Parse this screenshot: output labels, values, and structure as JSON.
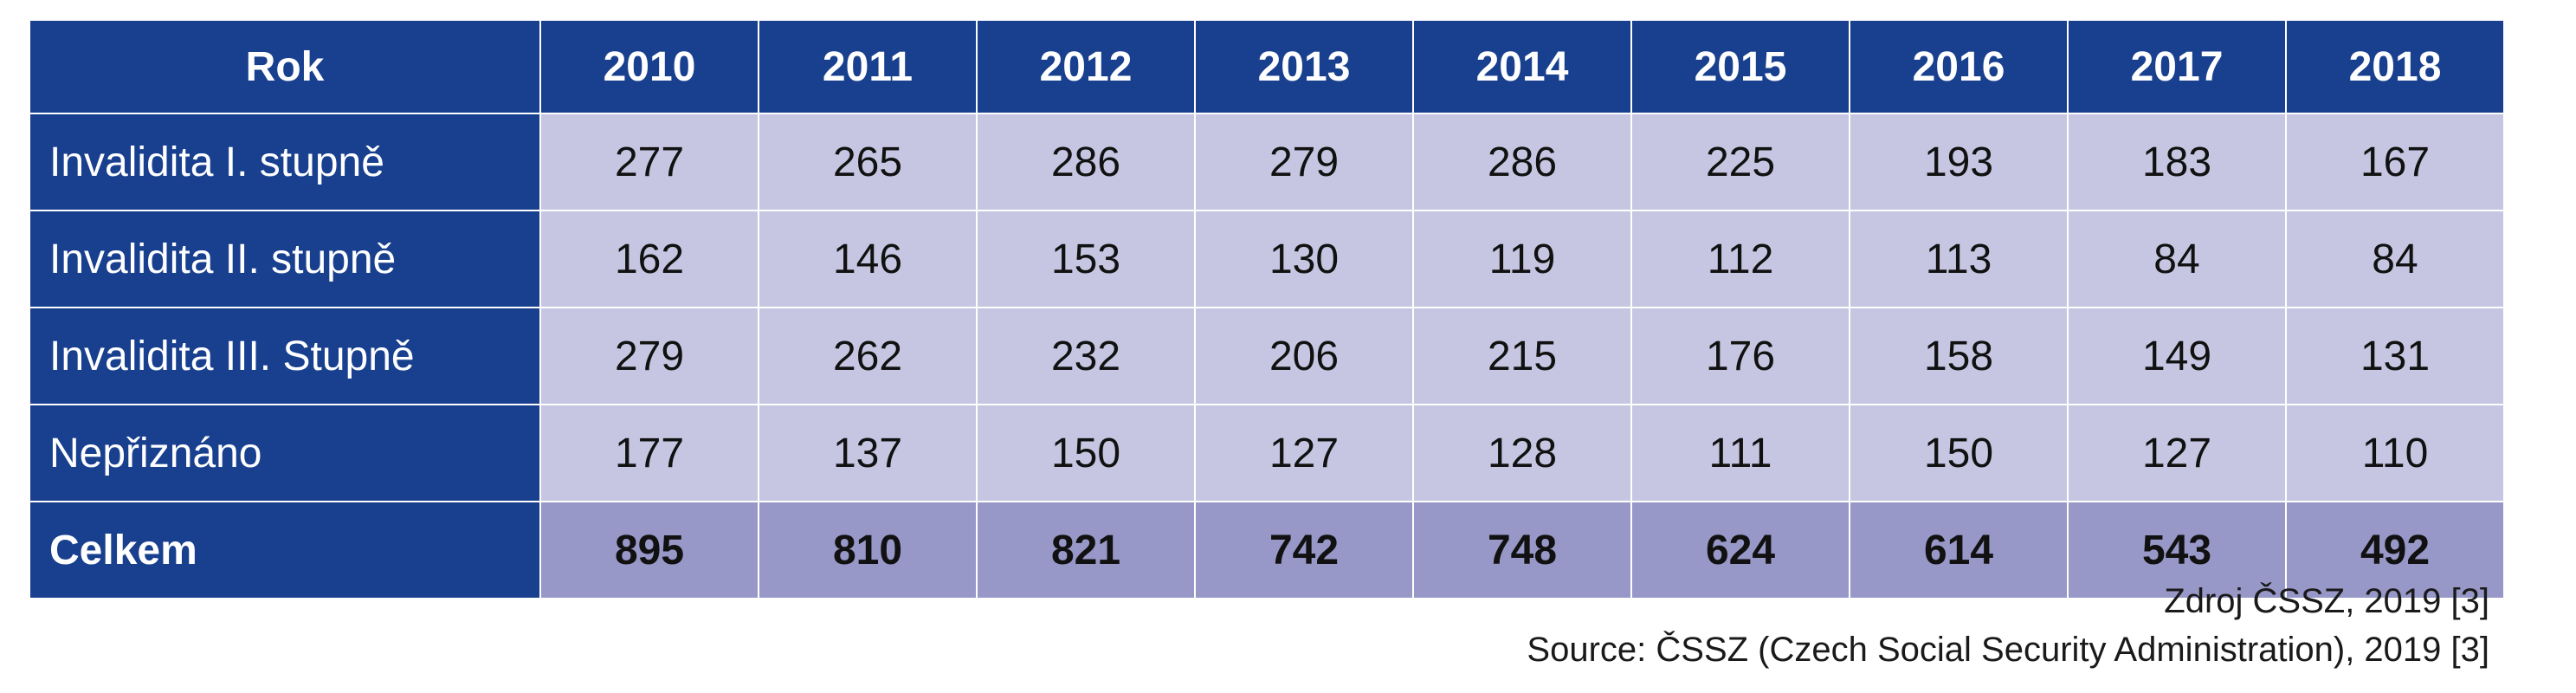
{
  "table": {
    "header_label": "Rok",
    "years": [
      "2010",
      "2011",
      "2012",
      "2013",
      "2014",
      "2015",
      "2016",
      "2017",
      "2018"
    ],
    "rows": [
      {
        "label": "Invalidita I. stupně",
        "values": [
          "277",
          "265",
          "286",
          "279",
          "286",
          "225",
          "193",
          "183",
          "167"
        ]
      },
      {
        "label": "Invalidita II. stupně",
        "values": [
          "162",
          "146",
          "153",
          "130",
          "119",
          "112",
          "113",
          "84",
          "84"
        ]
      },
      {
        "label": "Invalidita III. Stupně",
        "values": [
          "279",
          "262",
          "232",
          "206",
          "215",
          "176",
          "158",
          "149",
          "131"
        ]
      },
      {
        "label": "Nepřiznáno",
        "values": [
          "177",
          "137",
          "150",
          "127",
          "128",
          "111",
          "150",
          "127",
          "110"
        ]
      }
    ],
    "total": {
      "label": "Celkem",
      "values": [
        "895",
        "810",
        "821",
        "742",
        "748",
        "624",
        "614",
        "543",
        "492"
      ]
    }
  },
  "source": {
    "cz": "Zdroj ČSSZ, 2019 [3]",
    "en": "Source: ČSSZ (Czech Social Security Administration), 2019 [3]"
  },
  "colors": {
    "header_bg": "#18408f",
    "cell_bg": "#c6c6e2",
    "total_bg": "#9797c8"
  }
}
